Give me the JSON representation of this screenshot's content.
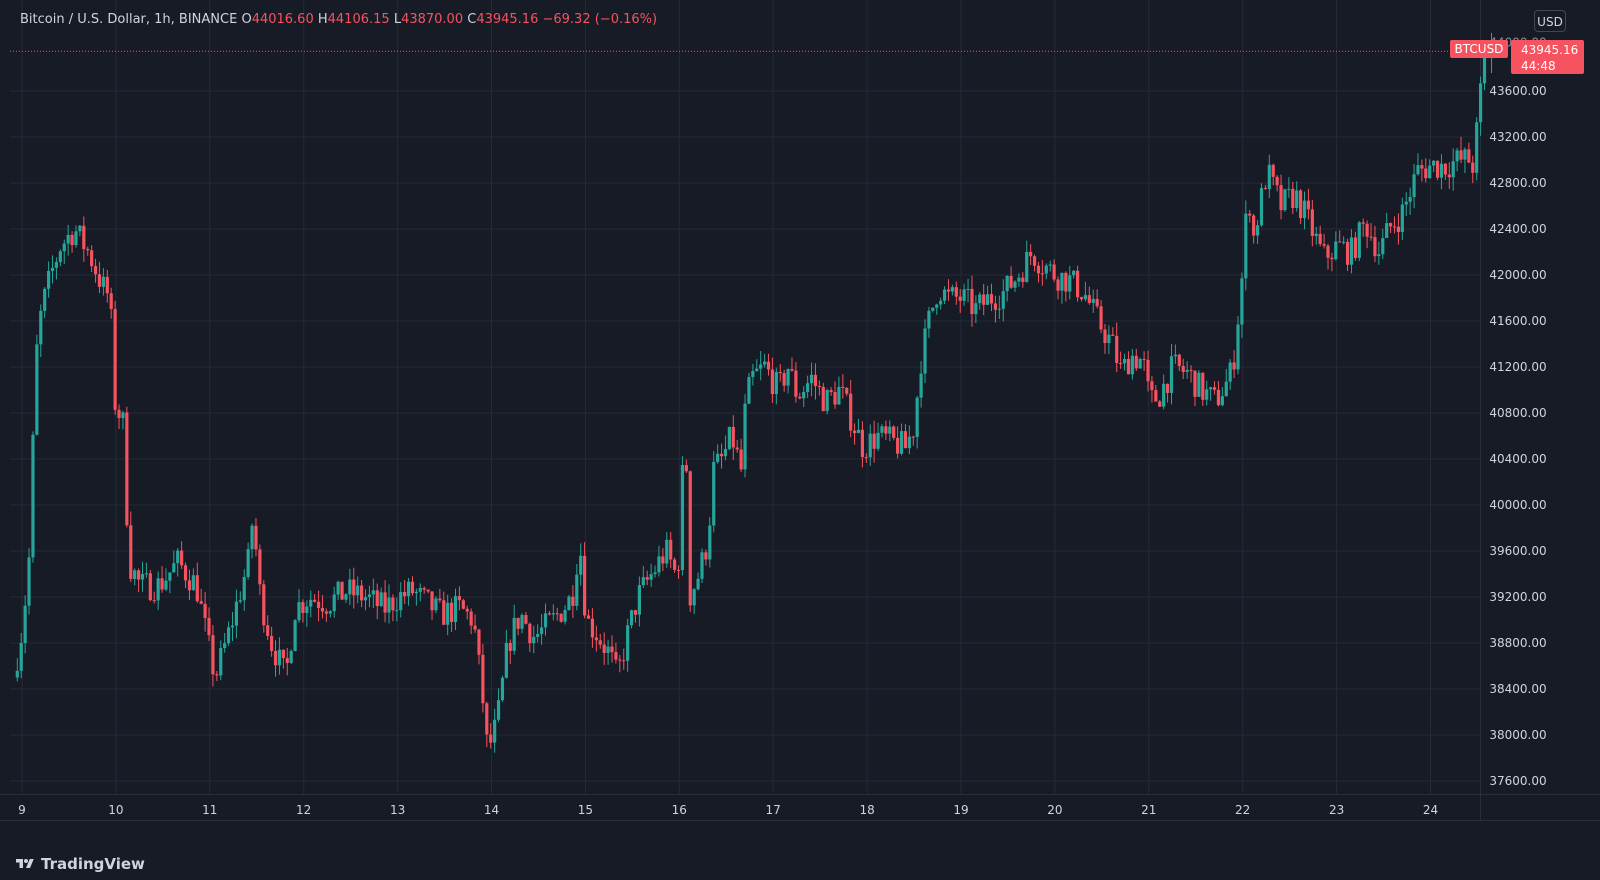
{
  "header": {
    "symbol": "Bitcoin / U.S. Dollar, 1h, BINANCE",
    "open_label": "O",
    "open_value": "44016.60",
    "high_label": "H",
    "high_value": "44106.15",
    "low_label": "L",
    "low_value": "43870.00",
    "close_label": "C",
    "close_value": "43945.16",
    "change": "−69.32 (−0.16%)"
  },
  "currency_button": "USD",
  "last_price": {
    "ticker": "BTCUSD",
    "price": "43945.16",
    "countdown": "44:48"
  },
  "footer": {
    "brand": "TradingView",
    "logo_icon": "tradingview-logo-icon"
  },
  "colors": {
    "background": "#171b26",
    "up": "#26a69a",
    "down": "#f7525f",
    "grid": "#262a35",
    "text": "#d1d4dc"
  },
  "chart_data": {
    "type": "candlestick",
    "interval": "1h",
    "grid": true,
    "price_scale": "right",
    "ylim": [
      37500,
      44200
    ],
    "y_ticks": [
      37600,
      38000,
      38400,
      38800,
      39200,
      39600,
      40000,
      40400,
      40800,
      41200,
      41600,
      42000,
      42400,
      42800,
      43200,
      43600
    ],
    "y_tick_labels": [
      "37600.00",
      "38000.00",
      "38400.00",
      "38800.00",
      "39200.00",
      "39600.00",
      "40000.00",
      "40400.00",
      "40800.00",
      "41200.00",
      "41600.00",
      "42000.00",
      "42400.00",
      "42800.00",
      "43200.00",
      "43600.00"
    ],
    "x_ticks": [
      "9",
      "10",
      "11",
      "12",
      "13",
      "14",
      "15",
      "16",
      "17",
      "18",
      "19",
      "20",
      "21",
      "22",
      "23",
      "24"
    ],
    "x_range_days": [
      8.95,
      24.85
    ],
    "close_path": [
      [
        8.95,
        38500
      ],
      [
        9.05,
        38950
      ],
      [
        9.13,
        39650
      ],
      [
        9.18,
        41200
      ],
      [
        9.25,
        41700
      ],
      [
        9.35,
        42000
      ],
      [
        9.45,
        42250
      ],
      [
        9.6,
        42400
      ],
      [
        9.75,
        42200
      ],
      [
        9.9,
        41900
      ],
      [
        9.98,
        41800
      ],
      [
        10.03,
        40900
      ],
      [
        10.12,
        40700
      ],
      [
        10.18,
        39500
      ],
      [
        10.3,
        39300
      ],
      [
        10.5,
        39300
      ],
      [
        10.7,
        39500
      ],
      [
        10.9,
        39300
      ],
      [
        11.02,
        38800
      ],
      [
        11.1,
        38500
      ],
      [
        11.25,
        38900
      ],
      [
        11.35,
        39200
      ],
      [
        11.45,
        39500
      ],
      [
        11.5,
        39900
      ],
      [
        11.58,
        39200
      ],
      [
        11.7,
        38800
      ],
      [
        11.85,
        38500
      ],
      [
        11.95,
        39100
      ],
      [
        12.1,
        39200
      ],
      [
        12.3,
        39150
      ],
      [
        12.5,
        39250
      ],
      [
        12.7,
        39200
      ],
      [
        12.9,
        39100
      ],
      [
        13.05,
        39200
      ],
      [
        13.2,
        39250
      ],
      [
        13.35,
        39150
      ],
      [
        13.5,
        39050
      ],
      [
        13.7,
        39100
      ],
      [
        13.85,
        39000
      ],
      [
        13.95,
        38300
      ],
      [
        14.0,
        37850
      ],
      [
        14.1,
        38100
      ],
      [
        14.22,
        38800
      ],
      [
        14.35,
        39050
      ],
      [
        14.5,
        38850
      ],
      [
        14.7,
        39000
      ],
      [
        14.9,
        39200
      ],
      [
        14.98,
        39700
      ],
      [
        15.05,
        39000
      ],
      [
        15.15,
        38900
      ],
      [
        15.3,
        38700
      ],
      [
        15.38,
        38500
      ],
      [
        15.5,
        38900
      ],
      [
        15.6,
        39200
      ],
      [
        15.75,
        39400
      ],
      [
        15.9,
        39600
      ],
      [
        16.0,
        39400
      ],
      [
        16.05,
        39600
      ],
      [
        16.1,
        40900
      ],
      [
        16.15,
        39200
      ],
      [
        16.25,
        39400
      ],
      [
        16.35,
        39700
      ],
      [
        16.4,
        40300
      ],
      [
        16.5,
        40400
      ],
      [
        16.6,
        40600
      ],
      [
        16.7,
        40300
      ],
      [
        16.75,
        40900
      ],
      [
        16.82,
        41100
      ],
      [
        16.95,
        41200
      ],
      [
        17.1,
        41000
      ],
      [
        17.2,
        41200
      ],
      [
        17.3,
        40950
      ],
      [
        17.45,
        41100
      ],
      [
        17.6,
        40900
      ],
      [
        17.75,
        41000
      ],
      [
        17.9,
        40700
      ],
      [
        18.0,
        40500
      ],
      [
        18.15,
        40600
      ],
      [
        18.3,
        40550
      ],
      [
        18.45,
        40500
      ],
      [
        18.55,
        40700
      ],
      [
        18.6,
        41200
      ],
      [
        18.7,
        41600
      ],
      [
        18.8,
        41900
      ],
      [
        18.9,
        41800
      ],
      [
        19.05,
        41800
      ],
      [
        19.2,
        41700
      ],
      [
        19.35,
        41800
      ],
      [
        19.5,
        41850
      ],
      [
        19.65,
        42000
      ],
      [
        19.8,
        42200
      ],
      [
        19.9,
        42100
      ],
      [
        20.05,
        42000
      ],
      [
        20.2,
        41950
      ],
      [
        20.35,
        41850
      ],
      [
        20.5,
        41600
      ],
      [
        20.65,
        41400
      ],
      [
        20.75,
        41150
      ],
      [
        20.85,
        41300
      ],
      [
        20.98,
        41250
      ],
      [
        21.05,
        40900
      ],
      [
        21.15,
        40950
      ],
      [
        21.3,
        41200
      ],
      [
        21.45,
        41150
      ],
      [
        21.6,
        41000
      ],
      [
        21.75,
        40900
      ],
      [
        21.9,
        41100
      ],
      [
        21.95,
        41300
      ],
      [
        22.05,
        42100
      ],
      [
        22.1,
        42800
      ],
      [
        22.15,
        42300
      ],
      [
        22.3,
        42900
      ],
      [
        22.45,
        42600
      ],
      [
        22.6,
        42700
      ],
      [
        22.75,
        42450
      ],
      [
        22.9,
        42150
      ],
      [
        23.05,
        42250
      ],
      [
        23.2,
        42200
      ],
      [
        23.35,
        42450
      ],
      [
        23.5,
        42200
      ],
      [
        23.6,
        42400
      ],
      [
        23.75,
        42550
      ],
      [
        23.9,
        42900
      ],
      [
        24.05,
        42950
      ],
      [
        24.2,
        42950
      ],
      [
        24.35,
        43000
      ],
      [
        24.45,
        43000
      ],
      [
        24.5,
        42950
      ],
      [
        24.6,
        43800
      ],
      [
        24.65,
        43945
      ]
    ],
    "last": {
      "open": 44016.6,
      "high": 44106.15,
      "low": 43870.0,
      "close": 43945.16
    }
  }
}
